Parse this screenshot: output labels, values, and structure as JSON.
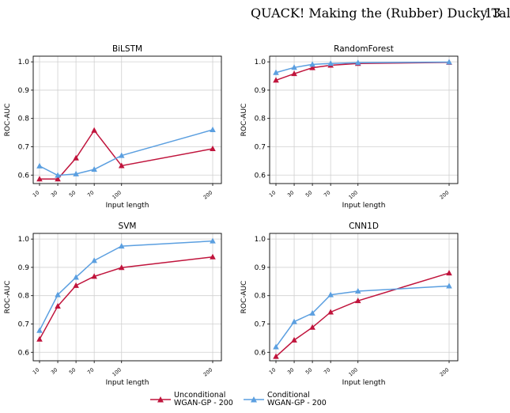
{
  "header": {
    "running_title": "QUACK! Making the (Rubber) Ducky Talk",
    "page_number": "13"
  },
  "legend": {
    "items": [
      {
        "line1": "Unconditional",
        "line2": "WGAN-GP - 200",
        "color": "#c0143c",
        "marker": "triangle"
      },
      {
        "line1": "Conditional",
        "line2": "WGAN-GP - 200",
        "color": "#5b9fe0",
        "marker": "triangle"
      }
    ]
  },
  "chart_data": [
    {
      "type": "line",
      "title": "BiLSTM",
      "xlabel": "Input length",
      "ylabel": "ROC-AUC",
      "x": [
        10,
        30,
        50,
        70,
        100,
        200
      ],
      "xlim": [
        10,
        200
      ],
      "ylim": [
        0.57,
        1.02
      ],
      "yticks": [
        0.6,
        0.7,
        0.8,
        0.9,
        1.0
      ],
      "ytick_labels": [
        "0.6",
        "0.7",
        "0.8",
        "0.9",
        "1.0"
      ],
      "xtick_labels": [
        "10",
        "30",
        "50",
        "70",
        "100",
        "200"
      ],
      "grid": true,
      "series": [
        {
          "name": "Unconditional WGAN-GP - 200",
          "color": "#c0143c",
          "values": [
            0.586,
            0.586,
            0.66,
            0.758,
            0.633,
            0.693
          ]
        },
        {
          "name": "Conditional WGAN-GP - 200",
          "color": "#5b9fe0",
          "values": [
            0.632,
            0.599,
            0.604,
            0.62,
            0.669,
            0.76
          ]
        }
      ]
    },
    {
      "type": "line",
      "title": "RandomForest",
      "xlabel": "Input length",
      "ylabel": "ROC-AUC",
      "x": [
        10,
        30,
        50,
        70,
        100,
        200
      ],
      "xlim": [
        10,
        200
      ],
      "ylim": [
        0.57,
        1.02
      ],
      "yticks": [
        0.6,
        0.7,
        0.8,
        0.9,
        1.0
      ],
      "ytick_labels": [
        "0.6",
        "0.7",
        "0.8",
        "0.9",
        "1.0"
      ],
      "xtick_labels": [
        "10",
        "30",
        "50",
        "70",
        "100",
        "200"
      ],
      "grid": true,
      "series": [
        {
          "name": "Unconditional WGAN-GP - 200",
          "color": "#c0143c",
          "values": [
            0.935,
            0.958,
            0.979,
            0.988,
            0.994,
            0.998
          ]
        },
        {
          "name": "Conditional WGAN-GP - 200",
          "color": "#5b9fe0",
          "values": [
            0.962,
            0.98,
            0.991,
            0.994,
            0.997,
            0.999
          ]
        }
      ]
    },
    {
      "type": "line",
      "title": "SVM",
      "xlabel": "Input length",
      "ylabel": "ROC-AUC",
      "x": [
        10,
        30,
        50,
        70,
        100,
        200
      ],
      "xlim": [
        10,
        200
      ],
      "ylim": [
        0.57,
        1.02
      ],
      "yticks": [
        0.6,
        0.7,
        0.8,
        0.9,
        1.0
      ],
      "ytick_labels": [
        "0.6",
        "0.7",
        "0.8",
        "0.9",
        "1.0"
      ],
      "xtick_labels": [
        "10",
        "30",
        "50",
        "70",
        "100",
        "200"
      ],
      "grid": true,
      "series": [
        {
          "name": "Unconditional WGAN-GP - 200",
          "color": "#c0143c",
          "values": [
            0.646,
            0.763,
            0.836,
            0.868,
            0.899,
            0.937
          ]
        },
        {
          "name": "Conditional WGAN-GP - 200",
          "color": "#5b9fe0",
          "values": [
            0.677,
            0.803,
            0.865,
            0.924,
            0.975,
            0.993
          ]
        }
      ]
    },
    {
      "type": "line",
      "title": "CNN1D",
      "xlabel": "Input length",
      "ylabel": "ROC-AUC",
      "x": [
        10,
        30,
        50,
        70,
        100,
        200
      ],
      "xlim": [
        10,
        200
      ],
      "ylim": [
        0.57,
        1.02
      ],
      "yticks": [
        0.6,
        0.7,
        0.8,
        0.9,
        1.0
      ],
      "ytick_labels": [
        "0.6",
        "0.7",
        "0.8",
        "0.9",
        "1.0"
      ],
      "xtick_labels": [
        "10",
        "30",
        "50",
        "70",
        "100",
        "200"
      ],
      "grid": true,
      "series": [
        {
          "name": "Unconditional WGAN-GP - 200",
          "color": "#c0143c",
          "values": [
            0.585,
            0.643,
            0.688,
            0.742,
            0.782,
            0.88
          ]
        },
        {
          "name": "Conditional WGAN-GP - 200",
          "color": "#5b9fe0",
          "values": [
            0.619,
            0.708,
            0.738,
            0.803,
            0.816,
            0.834
          ]
        }
      ]
    }
  ]
}
